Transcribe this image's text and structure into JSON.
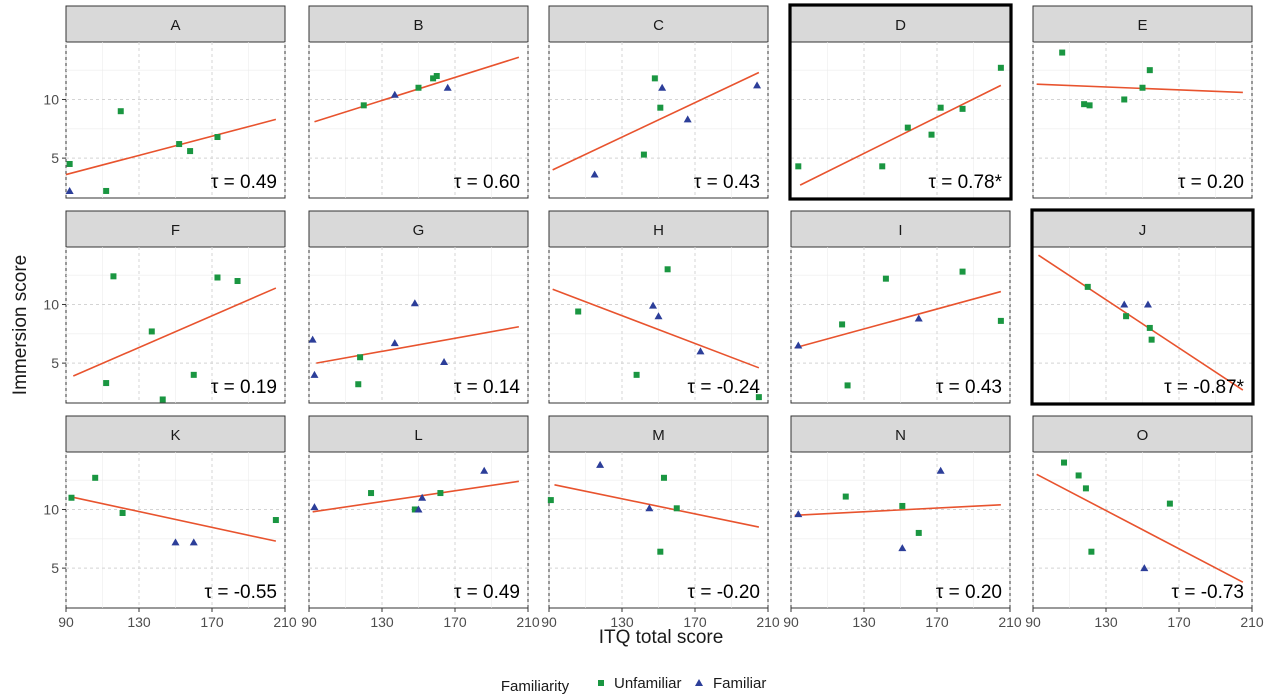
{
  "chart_data": {
    "type": "scatter",
    "xlabel": "ITQ total score",
    "ylabel": "Immersion score",
    "xlim": [
      90,
      210
    ],
    "xticks": [
      90,
      130,
      170,
      210
    ],
    "ylim": [
      1.6,
      14.9
    ],
    "yticks": [
      5,
      10
    ],
    "grid": true,
    "colors": {
      "unfamiliar": "#1a9641",
      "familiar": "#2c3e99",
      "fit": "#e8532e",
      "highlight": "#000000"
    },
    "legend": {
      "title": "Familiarity",
      "placement": "bottom",
      "entries": [
        {
          "label": "Unfamiliar",
          "shape": "square",
          "color": "#1a9641"
        },
        {
          "label": "Familiar",
          "shape": "triangle",
          "color": "#2c3e99"
        }
      ]
    },
    "panels": [
      {
        "label": "A",
        "tau": "τ = 0.49",
        "highlight": false,
        "fit": [
          [
            90,
            3.6
          ],
          [
            205,
            8.3
          ]
        ],
        "unfamiliar": [
          [
            92,
            4.5
          ],
          [
            112,
            2.2
          ],
          [
            120,
            9.0
          ],
          [
            152,
            6.2
          ],
          [
            158,
            5.6
          ],
          [
            173,
            6.8
          ]
        ],
        "familiar": [
          [
            92,
            2.2
          ]
        ]
      },
      {
        "label": "B",
        "tau": "τ = 0.60",
        "highlight": false,
        "fit": [
          [
            93,
            8.1
          ],
          [
            205,
            13.6
          ]
        ],
        "unfamiliar": [
          [
            120,
            9.5
          ],
          [
            150,
            11.0
          ],
          [
            158,
            11.8
          ],
          [
            160,
            12.0
          ]
        ],
        "familiar": [
          [
            137,
            10.4
          ],
          [
            166,
            11.0
          ]
        ]
      },
      {
        "label": "C",
        "tau": "τ = 0.43",
        "highlight": false,
        "fit": [
          [
            92,
            4.0
          ],
          [
            205,
            12.3
          ]
        ],
        "unfamiliar": [
          [
            142,
            5.3
          ],
          [
            148,
            11.8
          ],
          [
            151,
            9.3
          ]
        ],
        "familiar": [
          [
            115,
            3.6
          ],
          [
            152,
            11.0
          ],
          [
            166,
            8.3
          ],
          [
            204,
            11.2
          ]
        ]
      },
      {
        "label": "D",
        "tau": "τ = 0.78*",
        "highlight": true,
        "fit": [
          [
            95,
            2.7
          ],
          [
            205,
            11.2
          ]
        ],
        "unfamiliar": [
          [
            94,
            4.3
          ],
          [
            140,
            4.3
          ],
          [
            154,
            7.6
          ],
          [
            167,
            7.0
          ],
          [
            172,
            9.3
          ],
          [
            184,
            9.2
          ],
          [
            205,
            12.7
          ]
        ],
        "familiar": []
      },
      {
        "label": "E",
        "tau": "τ = 0.20",
        "highlight": false,
        "fit": [
          [
            92,
            11.3
          ],
          [
            205,
            10.6
          ]
        ],
        "unfamiliar": [
          [
            106,
            14.0
          ],
          [
            118,
            9.6
          ],
          [
            121,
            9.5
          ],
          [
            140,
            10.0
          ],
          [
            150,
            11.0
          ],
          [
            154,
            12.5
          ]
        ],
        "familiar": []
      },
      {
        "label": "F",
        "tau": "τ = 0.19",
        "highlight": false,
        "fit": [
          [
            94,
            3.9
          ],
          [
            205,
            11.4
          ]
        ],
        "unfamiliar": [
          [
            112,
            3.3
          ],
          [
            116,
            12.4
          ],
          [
            137,
            7.7
          ],
          [
            143,
            1.9
          ],
          [
            160,
            4.0
          ],
          [
            173,
            12.3
          ],
          [
            184,
            12.0
          ]
        ],
        "familiar": []
      },
      {
        "label": "G",
        "tau": "τ = 0.14",
        "highlight": false,
        "fit": [
          [
            94,
            5.0
          ],
          [
            205,
            8.1
          ]
        ],
        "unfamiliar": [
          [
            117,
            3.2
          ],
          [
            118,
            5.5
          ]
        ],
        "familiar": [
          [
            92,
            7.0
          ],
          [
            93,
            4.0
          ],
          [
            137,
            6.7
          ],
          [
            148,
            10.1
          ],
          [
            164,
            5.1
          ]
        ]
      },
      {
        "label": "H",
        "tau": "τ = -0.24",
        "highlight": false,
        "fit": [
          [
            92,
            11.3
          ],
          [
            205,
            4.6
          ]
        ],
        "unfamiliar": [
          [
            106,
            9.4
          ],
          [
            138,
            4.0
          ],
          [
            155,
            13.0
          ],
          [
            205,
            2.1
          ]
        ],
        "familiar": [
          [
            147,
            9.9
          ],
          [
            150,
            9.0
          ],
          [
            173,
            6.0
          ]
        ]
      },
      {
        "label": "I",
        "tau": "τ = 0.43",
        "highlight": false,
        "fit": [
          [
            92,
            6.3
          ],
          [
            205,
            11.1
          ]
        ],
        "unfamiliar": [
          [
            118,
            8.3
          ],
          [
            121,
            3.1
          ],
          [
            142,
            12.2
          ],
          [
            184,
            12.8
          ],
          [
            205,
            8.6
          ]
        ],
        "familiar": [
          [
            94,
            6.5
          ],
          [
            160,
            8.8
          ]
        ]
      },
      {
        "label": "J",
        "tau": "τ = -0.87*",
        "highlight": true,
        "fit": [
          [
            93,
            14.2
          ],
          [
            205,
            2.7
          ]
        ],
        "unfamiliar": [
          [
            120,
            11.5
          ],
          [
            141,
            9.0
          ],
          [
            154,
            8.0
          ],
          [
            155,
            7.0
          ]
        ],
        "familiar": [
          [
            140,
            10.0
          ],
          [
            153,
            10.0
          ]
        ]
      },
      {
        "label": "K",
        "tau": "τ = -0.55",
        "highlight": false,
        "fit": [
          [
            92,
            11.1
          ],
          [
            205,
            7.3
          ]
        ],
        "unfamiliar": [
          [
            93,
            11.0
          ],
          [
            106,
            12.7
          ],
          [
            121,
            9.7
          ],
          [
            205,
            9.1
          ]
        ],
        "familiar": [
          [
            150,
            7.2
          ],
          [
            160,
            7.2
          ]
        ]
      },
      {
        "label": "L",
        "tau": "τ = 0.49",
        "highlight": false,
        "fit": [
          [
            92,
            9.8
          ],
          [
            205,
            12.4
          ]
        ],
        "unfamiliar": [
          [
            124,
            11.4
          ],
          [
            148,
            10.0
          ],
          [
            162,
            11.4
          ]
        ],
        "familiar": [
          [
            93,
            10.2
          ],
          [
            150,
            10.0
          ],
          [
            152,
            11.0
          ],
          [
            186,
            13.3
          ]
        ]
      },
      {
        "label": "M",
        "tau": "τ = -0.20",
        "highlight": false,
        "fit": [
          [
            93,
            12.1
          ],
          [
            205,
            8.5
          ]
        ],
        "unfamiliar": [
          [
            91,
            10.8
          ],
          [
            151,
            6.4
          ],
          [
            153,
            12.7
          ],
          [
            160,
            10.1
          ]
        ],
        "familiar": [
          [
            118,
            13.8
          ],
          [
            145,
            10.1
          ]
        ]
      },
      {
        "label": "N",
        "tau": "τ = 0.20",
        "highlight": false,
        "fit": [
          [
            92,
            9.5
          ],
          [
            205,
            10.4
          ]
        ],
        "unfamiliar": [
          [
            120,
            11.1
          ],
          [
            151,
            10.3
          ],
          [
            160,
            8.0
          ]
        ],
        "familiar": [
          [
            94,
            9.6
          ],
          [
            151,
            6.7
          ],
          [
            172,
            13.3
          ]
        ]
      },
      {
        "label": "O",
        "tau": "τ = -0.73",
        "highlight": false,
        "fit": [
          [
            92,
            13.0
          ],
          [
            205,
            3.8
          ]
        ],
        "unfamiliar": [
          [
            107,
            14.0
          ],
          [
            115,
            12.9
          ],
          [
            119,
            11.8
          ],
          [
            122,
            6.4
          ],
          [
            165,
            10.5
          ]
        ],
        "familiar": [
          [
            151,
            5.0
          ]
        ]
      }
    ]
  }
}
